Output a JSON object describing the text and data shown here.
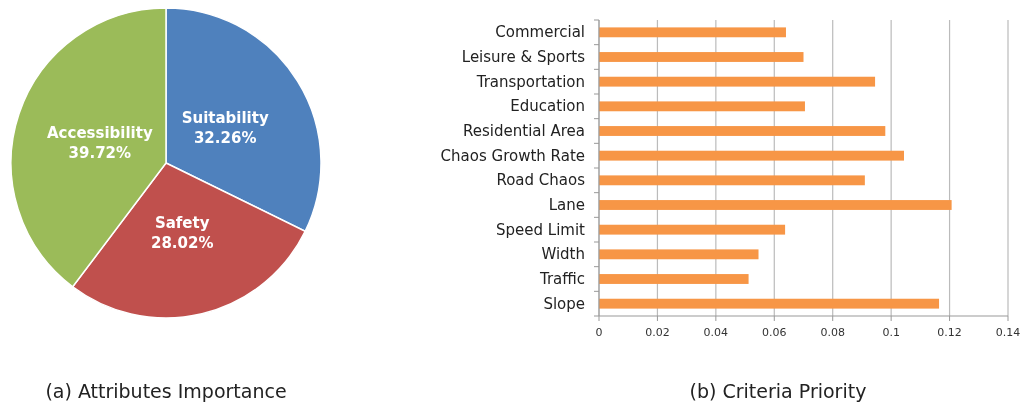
{
  "chart_data": [
    {
      "type": "pie",
      "title": "(a) Attributes Importance",
      "categories": [
        "Suitability",
        "Safety",
        "Accessibility"
      ],
      "values": [
        32.26,
        28.02,
        39.72
      ],
      "value_labels": [
        "32.26%",
        "28.02%",
        "39.72%"
      ],
      "colors": [
        "#4f81bd",
        "#c0504d",
        "#9bbb59"
      ]
    },
    {
      "type": "bar",
      "title": "(b) Criteria Priority",
      "orientation": "horizontal",
      "categories": [
        "Commercial",
        "Leisure & Sports",
        "Transportation",
        "Education",
        "Residential Area",
        "Chaos Growth Rate",
        "Road Chaos",
        "Lane",
        "Speed Limit",
        "Width",
        "Traffic",
        "Slope"
      ],
      "values": [
        0.064,
        0.07,
        0.0945,
        0.0705,
        0.098,
        0.1044,
        0.091,
        0.1207,
        0.0637,
        0.0546,
        0.0512,
        0.1164
      ],
      "color": "#f79646",
      "xlim": [
        0,
        0.14
      ],
      "xticks": [
        0,
        0.02,
        0.04,
        0.06,
        0.08,
        0.1,
        0.12,
        0.14
      ],
      "grid": "x"
    }
  ]
}
